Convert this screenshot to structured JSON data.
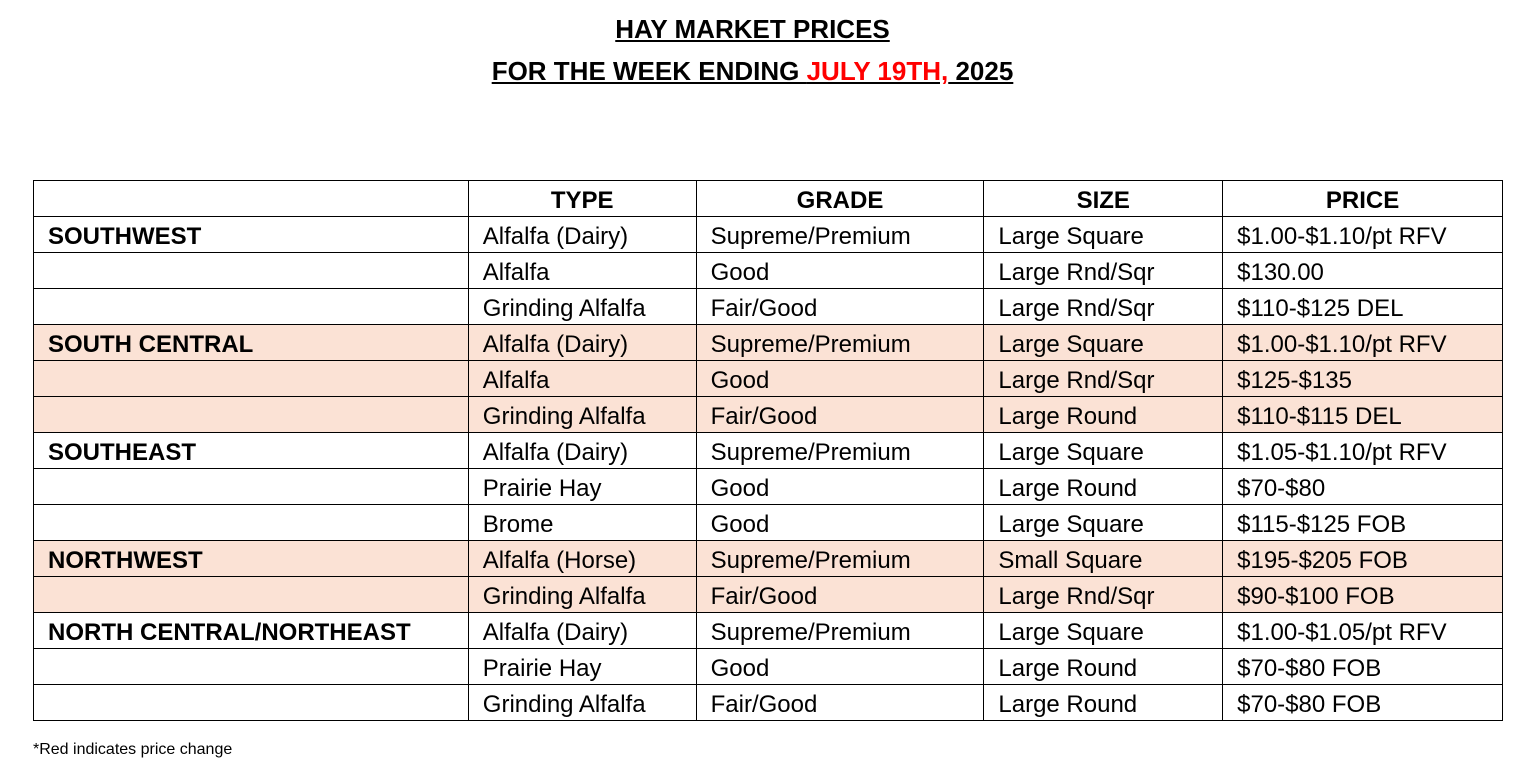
{
  "title_line1": "HAY MARKET PRICES",
  "title_line2_prefix": "FOR THE WEEK ENDING ",
  "title_line2_date": "JULY 19TH,",
  "title_line2_year": " 2025",
  "columns": [
    "",
    "TYPE",
    "GRADE",
    "SIZE",
    "PRICE"
  ],
  "rows": [
    {
      "region": "SOUTHWEST",
      "type": "Alfalfa (Dairy)",
      "grade": "Supreme/Premium",
      "size": "Large Square",
      "price": "$1.00-$1.10/pt RFV",
      "shaded": false
    },
    {
      "region": "",
      "type": "Alfalfa",
      "grade": "Good",
      "size": "Large Rnd/Sqr",
      "price": "$130.00",
      "shaded": false
    },
    {
      "region": "",
      "type": "Grinding Alfalfa",
      "grade": "Fair/Good",
      "size": "Large Rnd/Sqr",
      "price": "$110-$125 DEL",
      "shaded": false
    },
    {
      "region": "SOUTH CENTRAL",
      "type": "Alfalfa (Dairy)",
      "grade": "Supreme/Premium",
      "size": "Large Square",
      "price": "$1.00-$1.10/pt RFV",
      "shaded": true
    },
    {
      "region": "",
      "type": "Alfalfa",
      "grade": "Good",
      "size": "Large Rnd/Sqr",
      "price": "$125-$135",
      "shaded": true
    },
    {
      "region": "",
      "type": "Grinding Alfalfa",
      "grade": "Fair/Good",
      "size": "Large Round",
      "price": "$110-$115 DEL",
      "shaded": true
    },
    {
      "region": "SOUTHEAST",
      "type": "Alfalfa (Dairy)",
      "grade": "Supreme/Premium",
      "size": "Large Square",
      "price": "$1.05-$1.10/pt RFV",
      "shaded": false
    },
    {
      "region": "",
      "type": "Prairie Hay",
      "grade": "Good",
      "size": "Large Round",
      "price": "$70-$80",
      "shaded": false
    },
    {
      "region": "",
      "type": "Brome",
      "grade": "Good",
      "size": "Large Square",
      "price": "$115-$125 FOB",
      "shaded": false
    },
    {
      "region": "NORTHWEST",
      "type": "Alfalfa (Horse)",
      "grade": "Supreme/Premium",
      "size": "Small Square",
      "price": "$195-$205 FOB",
      "shaded": true
    },
    {
      "region": "",
      "type": "Grinding Alfalfa",
      "grade": "Fair/Good",
      "size": "Large Rnd/Sqr",
      "price": "$90-$100 FOB",
      "shaded": true
    },
    {
      "region": "NORTH CENTRAL/NORTHEAST",
      "type": "Alfalfa (Dairy)",
      "grade": "Supreme/Premium",
      "size": "Large Square",
      "price": "$1.00-$1.05/pt RFV",
      "shaded": false
    },
    {
      "region": "",
      "type": "Prairie Hay",
      "grade": "Good",
      "size": "Large Round",
      "price": "$70-$80 FOB",
      "shaded": false
    },
    {
      "region": "",
      "type": "Grinding Alfalfa",
      "grade": "Fair/Good",
      "size": "Large Round",
      "price": "$70-$80 FOB",
      "shaded": false
    }
  ],
  "footnote": "*Red indicates price change",
  "colors": {
    "shade": "#fbe2d5",
    "highlight": "#ff0000"
  }
}
